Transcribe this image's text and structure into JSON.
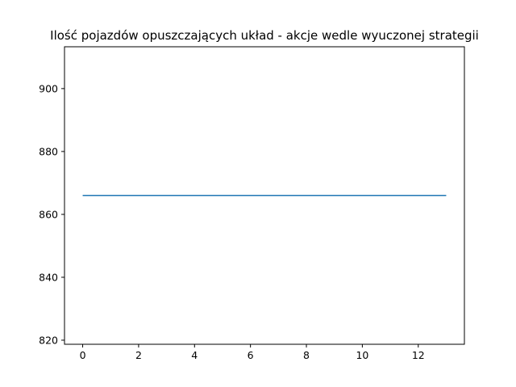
{
  "chart_data": {
    "type": "line",
    "title": "Ilość pojazdów opuszczających układ - akcje wedle wyuczonej strategii",
    "xlabel": "",
    "ylabel": "",
    "xlim": [
      -0.65,
      13.65
    ],
    "ylim": [
      818.7,
      913.3
    ],
    "x_ticks": [
      0,
      2,
      4,
      6,
      8,
      10,
      12
    ],
    "y_ticks": [
      820,
      840,
      860,
      880,
      900
    ],
    "grid": false,
    "legend": "none",
    "series": [
      {
        "color": "#1f77b4",
        "x": [
          0,
          1,
          2,
          3,
          4,
          5,
          6,
          7,
          8,
          9,
          10,
          11,
          12,
          13
        ],
        "y": [
          866,
          866,
          866,
          866,
          866,
          866,
          866,
          866,
          866,
          866,
          866,
          866,
          866,
          866
        ]
      }
    ]
  }
}
